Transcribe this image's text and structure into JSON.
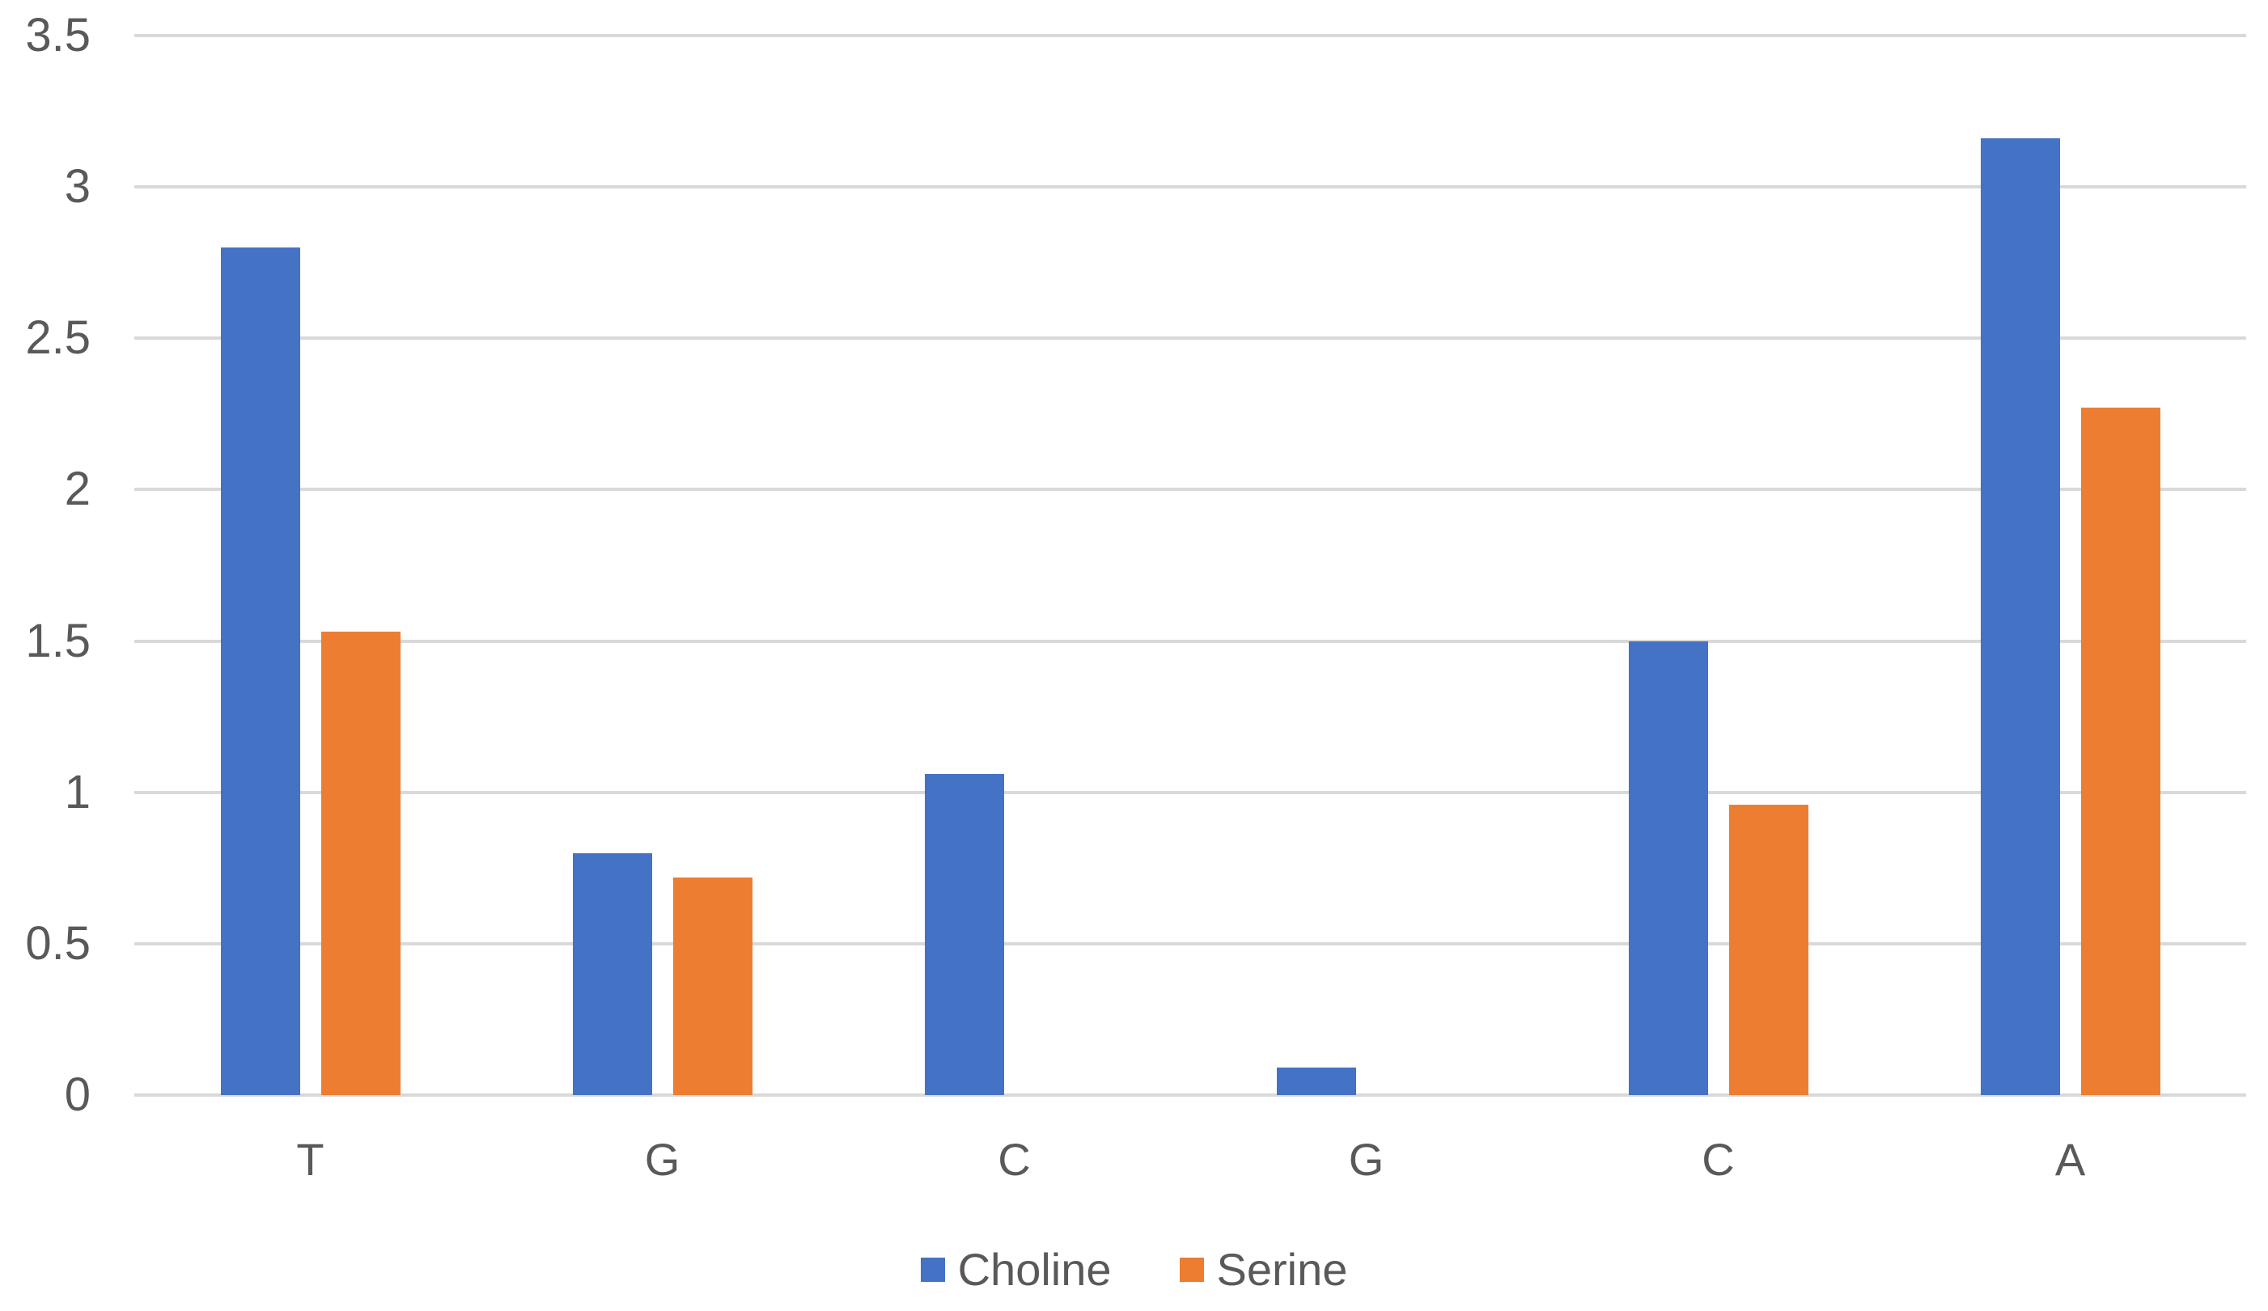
{
  "chart_data": {
    "type": "bar",
    "categories": [
      "T",
      "G",
      "C",
      "G",
      "C",
      "A"
    ],
    "series": [
      {
        "name": "Choline",
        "color": "#4472C4",
        "values": [
          2.8,
          0.8,
          1.06,
          0.09,
          1.5,
          3.16
        ]
      },
      {
        "name": "Serine",
        "color": "#ED7D31",
        "values": [
          1.53,
          0.72,
          0,
          0,
          0.96,
          2.27
        ]
      }
    ],
    "ylim": [
      0,
      3.5
    ],
    "ytick_step": 0.5,
    "yticks": [
      "0",
      "0.5",
      "1",
      "1.5",
      "2",
      "2.5",
      "3",
      "3.5"
    ],
    "grid": true,
    "legend_position": "bottom",
    "colors": {
      "gridline": "#D9D9D9",
      "axis_text": "#595959",
      "background": "#FFFFFF"
    }
  }
}
